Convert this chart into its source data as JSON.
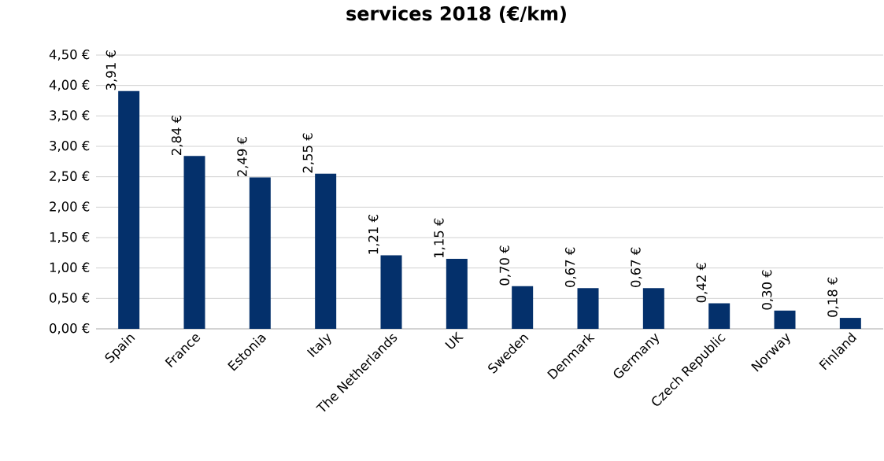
{
  "chart_data": {
    "type": "bar",
    "title": "services 2018 (€/km)",
    "categories": [
      "Spain",
      "France",
      "Estonia",
      "Italy",
      "The Netherlands",
      "UK",
      "Sweden",
      "Denmark",
      "Germany",
      "Czech Republic",
      "Norway",
      "Finland"
    ],
    "values": [
      3.91,
      2.84,
      2.49,
      2.55,
      1.21,
      1.15,
      0.7,
      0.67,
      0.67,
      0.42,
      0.3,
      0.18
    ],
    "value_labels": [
      "3,91 €",
      "2,84 €",
      "2,49 €",
      "2,55 €",
      "1,21 €",
      "1,15 €",
      "0,70 €",
      "0,67 €",
      "0,67 €",
      "0,42 €",
      "0,30 €",
      "0,18 €"
    ],
    "color": "#04306b",
    "ylim": [
      0,
      4.5
    ],
    "yticks": [
      {
        "value": 0,
        "label": "0,00 €"
      },
      {
        "value": 0.5,
        "label": "0,50 €"
      },
      {
        "value": 1,
        "label": "1,00 €"
      },
      {
        "value": 1.5,
        "label": "1,50 €"
      },
      {
        "value": 2,
        "label": "2,00 €"
      },
      {
        "value": 2.5,
        "label": "2,50 €"
      },
      {
        "value": 3,
        "label": "3,00 €"
      },
      {
        "value": 3.5,
        "label": "3,50 €"
      },
      {
        "value": 4,
        "label": "4,00 €"
      },
      {
        "value": 4.5,
        "label": "4,50 €"
      }
    ],
    "grid": "y"
  }
}
